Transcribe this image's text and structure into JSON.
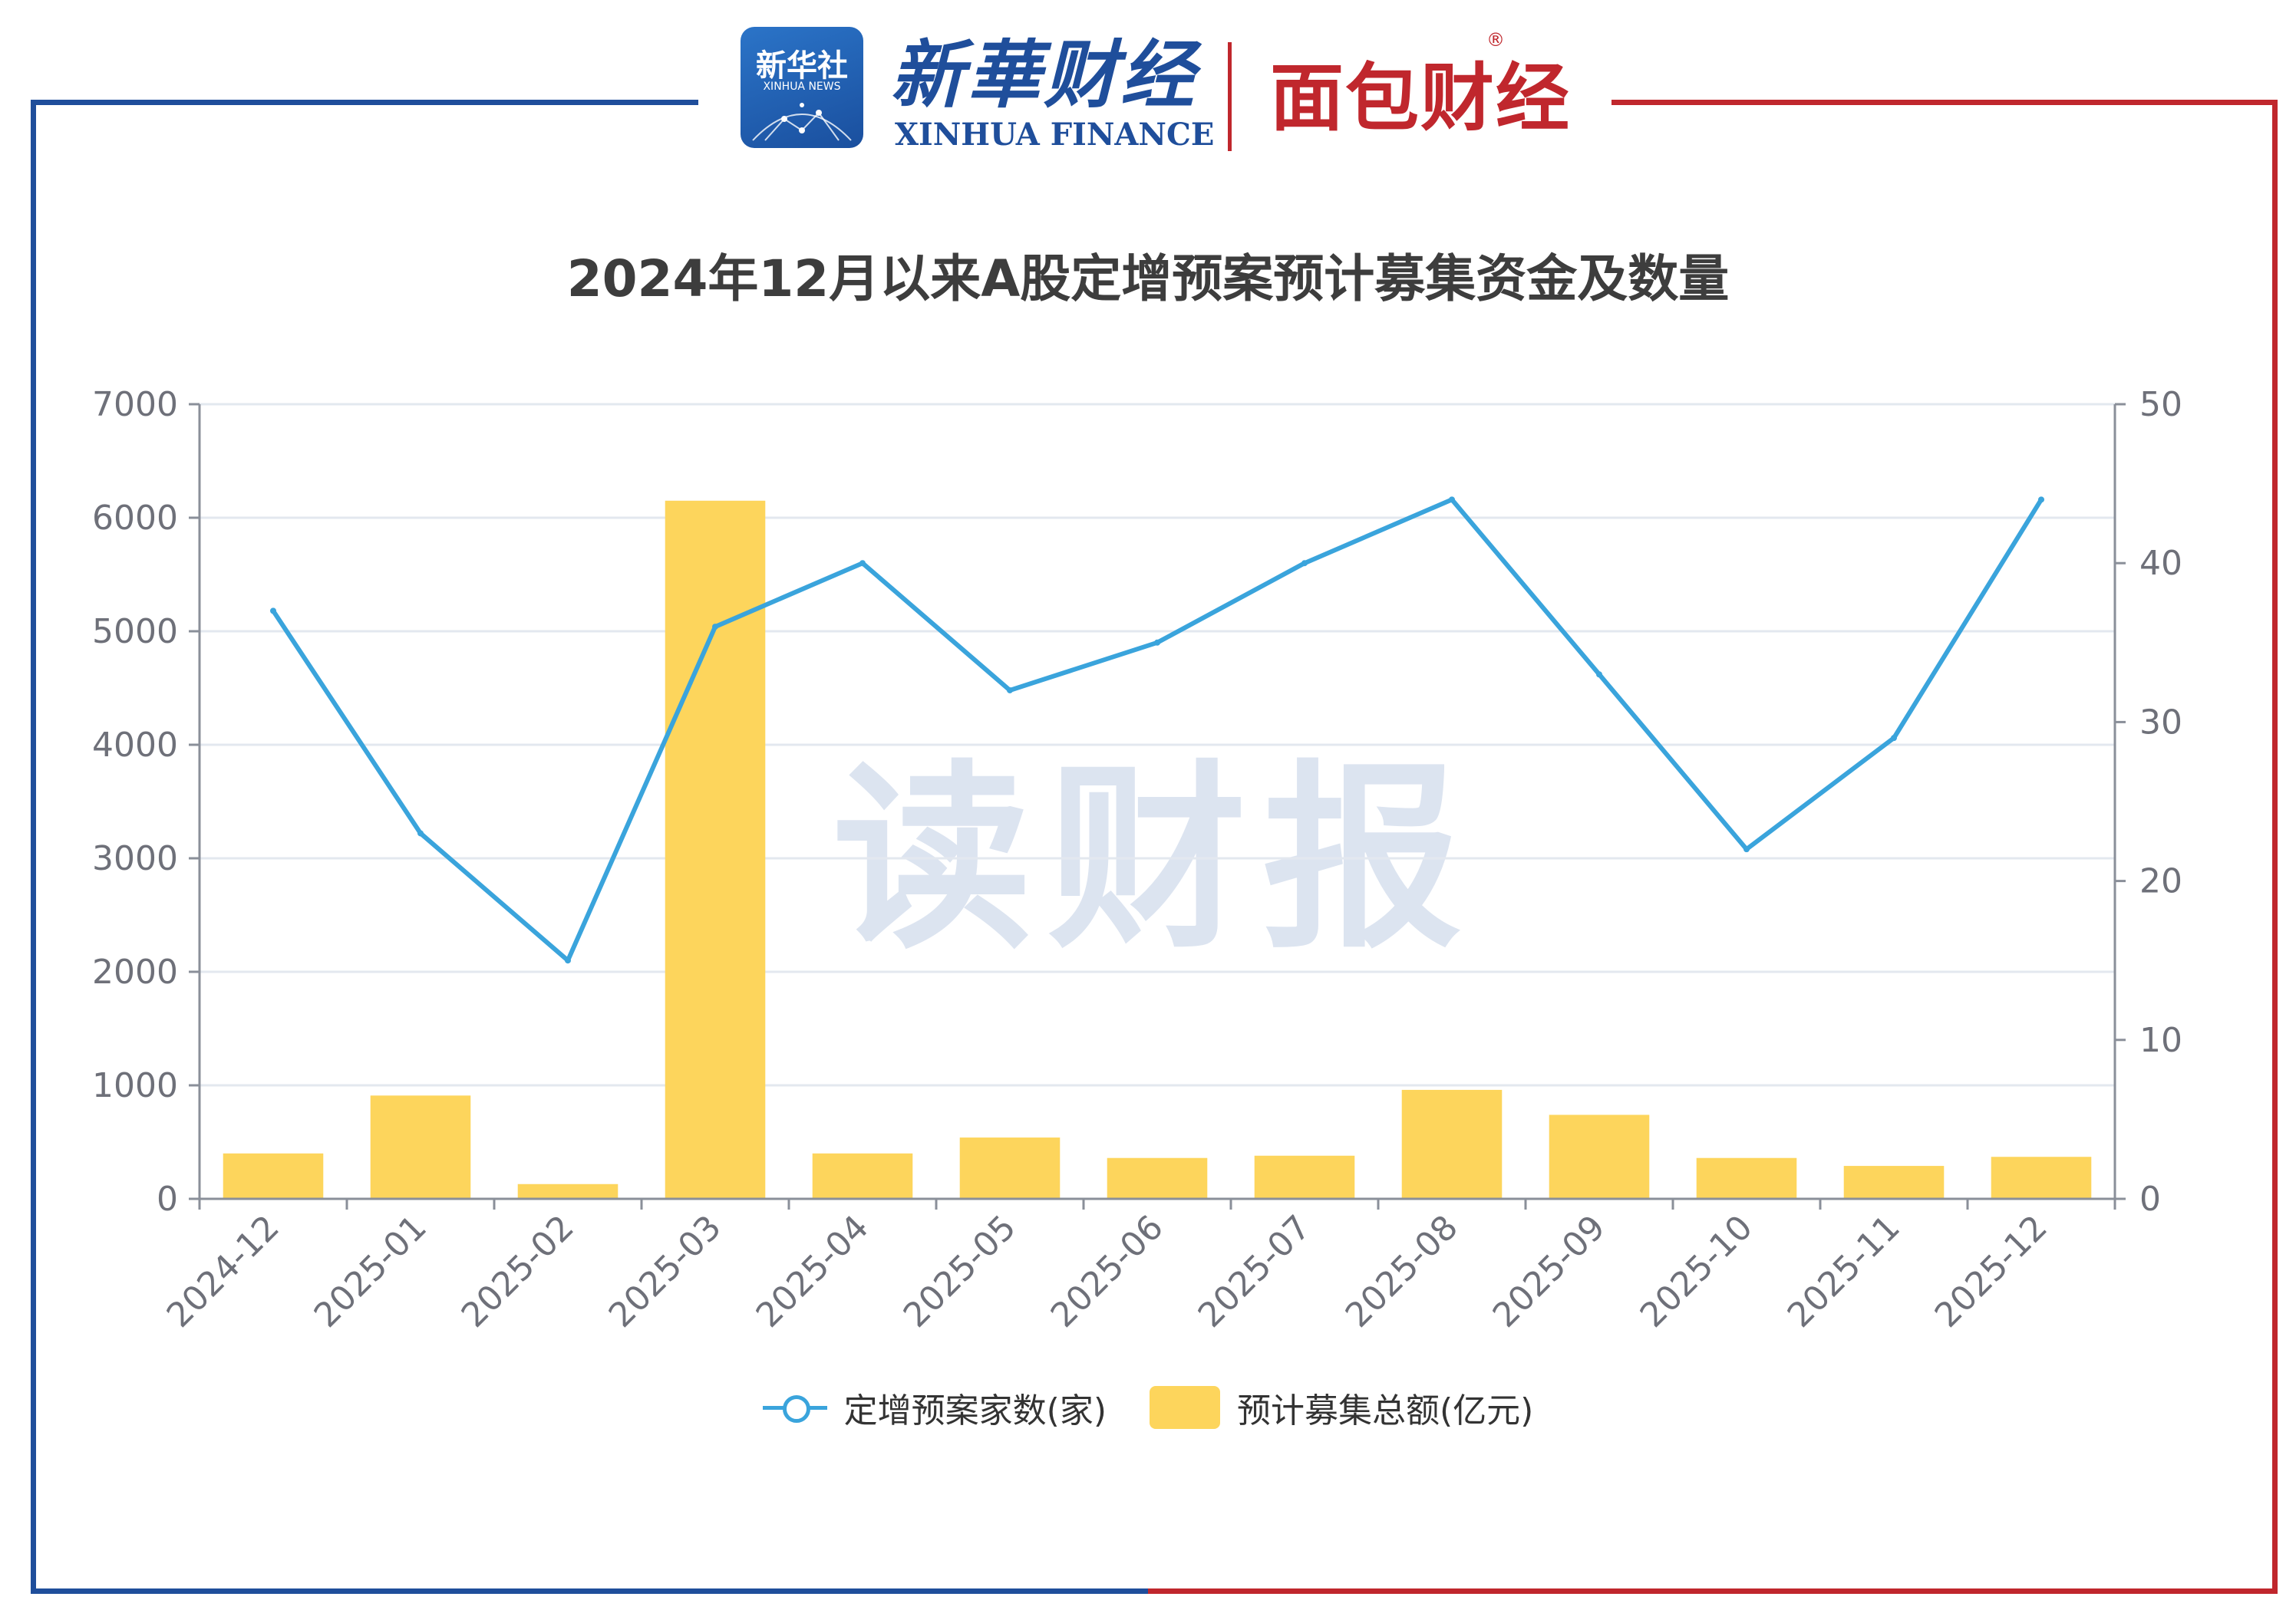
{
  "brand": {
    "xinhua_badge_cn": "新华社",
    "xinhua_badge_en": "XINHUA NEWS",
    "xinhua_finance_cn": "新華财经",
    "xinhua_finance_en": "XINHUA FINANCE",
    "mianbao_cn": "面包财经",
    "mianbao_mark": "®",
    "frame_left_color": "#1f4e9b",
    "frame_right_color": "#c0272d"
  },
  "watermark": "读财报",
  "chart_data": {
    "type": "bar",
    "title": "2024年12月以来A股定增预案预计募集资金及数量",
    "categories": [
      "2024-12",
      "2025-01",
      "2025-02",
      "2025-03",
      "2025-04",
      "2025-05",
      "2025-06",
      "2025-07",
      "2025-08",
      "2025-09",
      "2025-10",
      "2025-11",
      "2025-12"
    ],
    "series": [
      {
        "name": "定增预案家数(家)",
        "type": "line",
        "axis": "right",
        "color": "#3aa4dc",
        "values": [
          37,
          23,
          15,
          36,
          40,
          32,
          35,
          40,
          44,
          33,
          22,
          29,
          44
        ]
      },
      {
        "name": "预计募集总额(亿元)",
        "type": "bar",
        "axis": "left",
        "color": "#fdd55c",
        "values": [
          400,
          910,
          130,
          6150,
          400,
          540,
          360,
          380,
          960,
          740,
          360,
          290,
          370
        ]
      }
    ],
    "y_left": {
      "min": 0,
      "max": 7000,
      "ticks": [
        0,
        1000,
        2000,
        3000,
        4000,
        5000,
        6000,
        7000
      ]
    },
    "y_right": {
      "min": 0,
      "max": 50,
      "ticks": [
        0,
        10,
        20,
        30,
        40,
        50
      ]
    },
    "grid": true,
    "legend_position": "bottom-center"
  }
}
